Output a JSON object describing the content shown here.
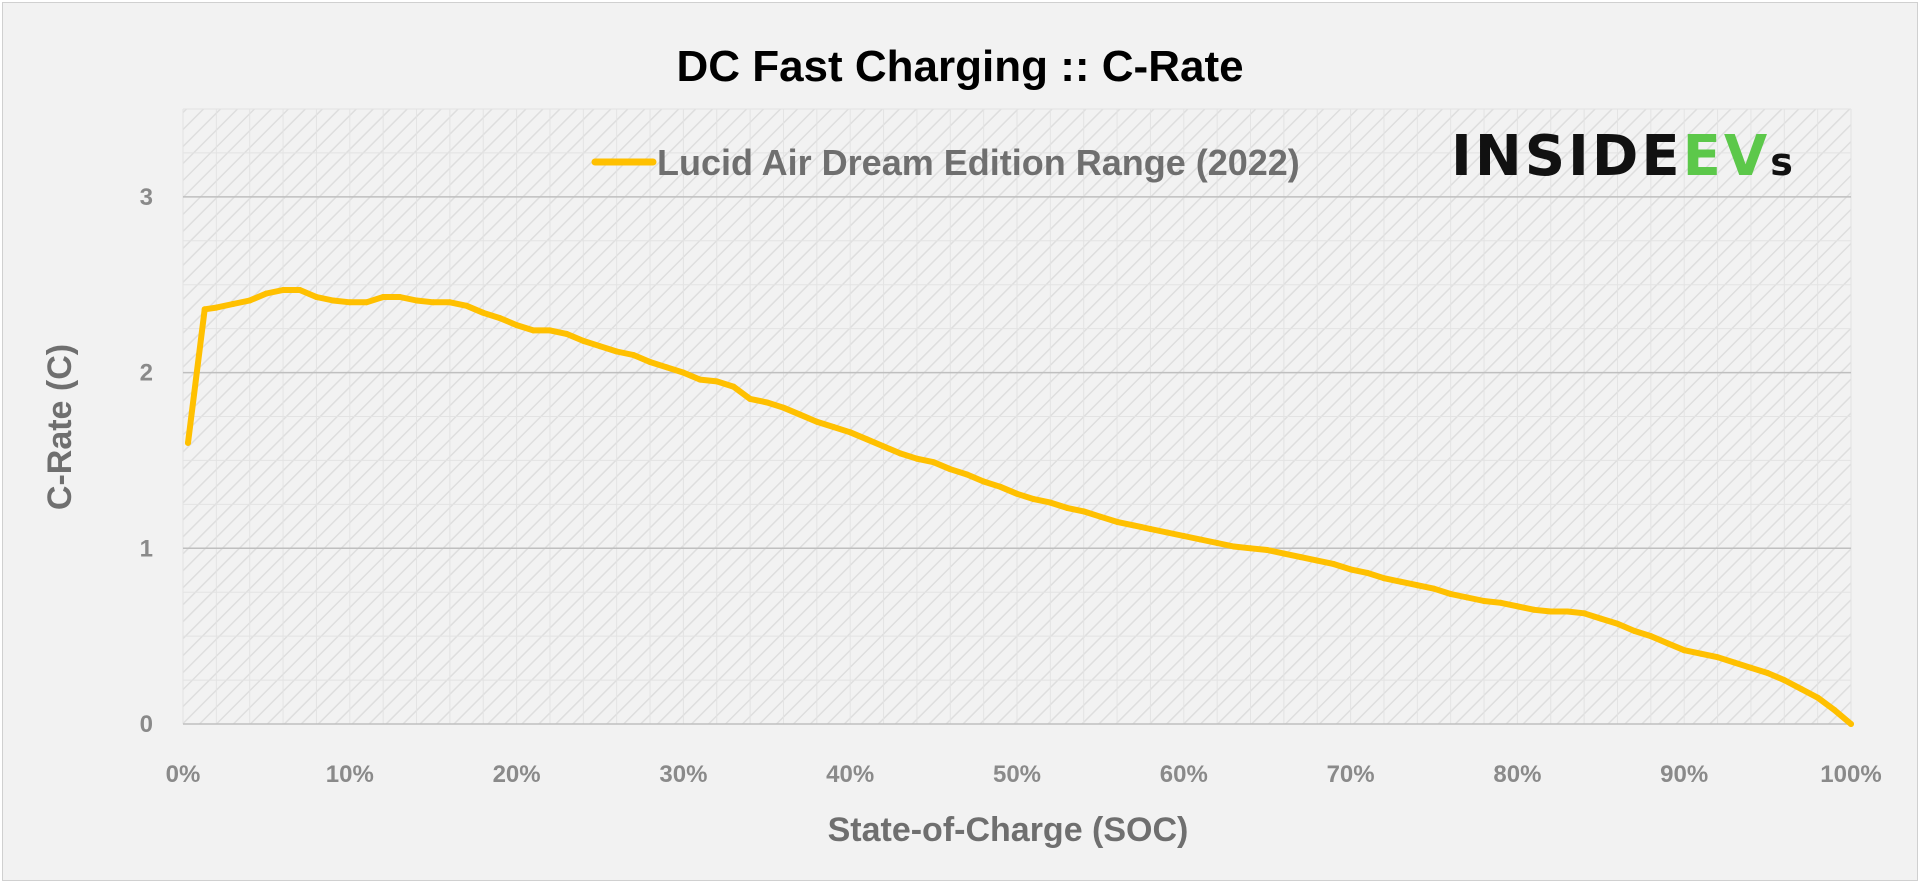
{
  "chart_data": {
    "type": "line",
    "title": "DC Fast Charging :: C-Rate",
    "xlabel": "State-of-Charge  (SOC)",
    "ylabel": "C-Rate  (C)",
    "xlim": [
      0,
      100
    ],
    "ylim": [
      0,
      3.5
    ],
    "x_ticks": [
      "0%",
      "10%",
      "20%",
      "30%",
      "40%",
      "50%",
      "60%",
      "70%",
      "80%",
      "90%",
      "100%"
    ],
    "y_ticks": [
      "0",
      "1",
      "2",
      "3"
    ],
    "grid": true,
    "legend_position": "top-center",
    "series": [
      {
        "name": "Lucid Air Dream Edition Range (2022)",
        "color": "#ffc000",
        "x": [
          0.3,
          1.3,
          2,
          3,
          4,
          5,
          6,
          7,
          8,
          9,
          10,
          11,
          12,
          13,
          14,
          15,
          16,
          17,
          18,
          19,
          20,
          21,
          22,
          23,
          24,
          25,
          26,
          27,
          28,
          29,
          30,
          31,
          32,
          33,
          34,
          35,
          36,
          37,
          38,
          39,
          40,
          41,
          42,
          43,
          44,
          45,
          46,
          47,
          48,
          49,
          50,
          51,
          52,
          53,
          54,
          55,
          56,
          57,
          58,
          59,
          60,
          61,
          62,
          63,
          64,
          65,
          66,
          67,
          68,
          69,
          70,
          71,
          72,
          73,
          74,
          75,
          76,
          77,
          78,
          79,
          80,
          81,
          82,
          83,
          84,
          85,
          86,
          87,
          88,
          89,
          90,
          91,
          92,
          93,
          94,
          95,
          96,
          97,
          98,
          99,
          100
        ],
        "y": [
          1.6,
          2.36,
          2.37,
          2.39,
          2.41,
          2.45,
          2.47,
          2.47,
          2.43,
          2.41,
          2.4,
          2.4,
          2.43,
          2.43,
          2.41,
          2.4,
          2.4,
          2.38,
          2.34,
          2.31,
          2.27,
          2.24,
          2.24,
          2.22,
          2.18,
          2.15,
          2.12,
          2.1,
          2.06,
          2.03,
          2.0,
          1.96,
          1.95,
          1.92,
          1.85,
          1.83,
          1.8,
          1.76,
          1.72,
          1.69,
          1.66,
          1.62,
          1.58,
          1.54,
          1.51,
          1.49,
          1.45,
          1.42,
          1.38,
          1.35,
          1.31,
          1.28,
          1.26,
          1.23,
          1.21,
          1.18,
          1.15,
          1.13,
          1.11,
          1.09,
          1.07,
          1.05,
          1.03,
          1.01,
          1.0,
          0.99,
          0.97,
          0.95,
          0.93,
          0.91,
          0.88,
          0.86,
          0.83,
          0.81,
          0.79,
          0.77,
          0.74,
          0.72,
          0.7,
          0.69,
          0.67,
          0.65,
          0.64,
          0.64,
          0.63,
          0.6,
          0.57,
          0.53,
          0.5,
          0.46,
          0.42,
          0.4,
          0.38,
          0.35,
          0.32,
          0.29,
          0.25,
          0.2,
          0.15,
          0.08,
          0.0
        ]
      }
    ]
  },
  "logo": {
    "part1": "INSIDE",
    "part2": "EV",
    "part3": "s",
    "green_color": "#5cc84a"
  }
}
